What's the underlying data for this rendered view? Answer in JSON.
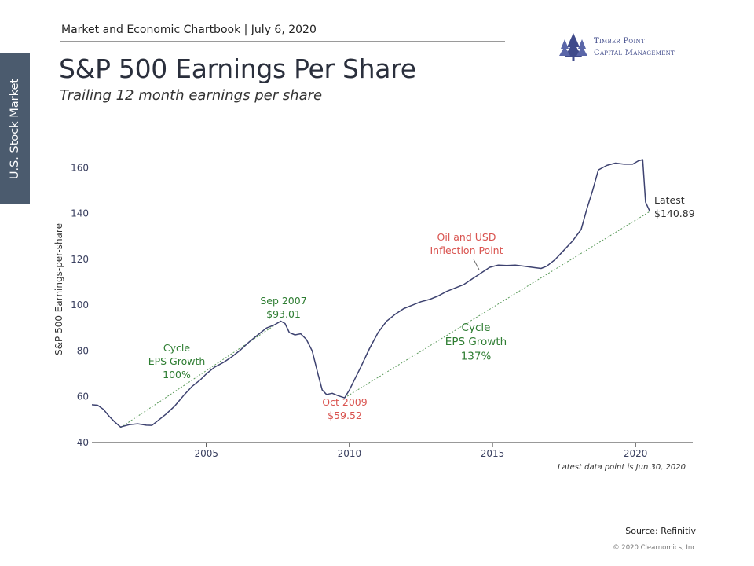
{
  "header": {
    "text": "Market and Economic Chartbook | July 6, 2020"
  },
  "title": "S&P 500 Earnings Per Share",
  "subtitle": "Trailing 12 month earnings per share",
  "side_tab": "U.S. Stock Market",
  "logo": {
    "line1": "Timber Point",
    "line2": "Capital Management",
    "icon": "pine-trees-icon"
  },
  "footer": {
    "source": "Source: Refinitiv",
    "copyright": "© 2020 Clearnomics, Inc"
  },
  "colors": {
    "line": "#3d4270",
    "green": "#2e7d32",
    "red": "#d9534f",
    "trend": "#5a9a5a"
  },
  "chart_data": {
    "type": "line",
    "xlabel": "",
    "ylabel": "S&P 500 Earnings-per-share",
    "ylim": [
      40,
      168
    ],
    "xlim": [
      2001.0,
      2022.0
    ],
    "yticks": [
      40,
      60,
      80,
      100,
      120,
      140,
      160
    ],
    "xticks": [
      2005,
      2010,
      2015,
      2020
    ],
    "grid": false,
    "note": "Latest data point is Jun 30, 2020",
    "series": [
      {
        "x": [
          2001.0,
          2001.2,
          2001.4,
          2001.6,
          2001.8,
          2002.0,
          2002.3,
          2002.6,
          2002.9,
          2003.1,
          2003.3,
          2003.6,
          2003.9,
          2004.2,
          2004.5,
          2004.8,
          2005.0,
          2005.3,
          2005.6,
          2005.9,
          2006.2,
          2006.5,
          2006.8,
          2007.1,
          2007.4,
          2007.6,
          2007.75,
          2007.9,
          2008.1,
          2008.3,
          2008.5,
          2008.7,
          2008.9,
          2009.05,
          2009.2,
          2009.4,
          2009.6,
          2009.83,
          2010.0,
          2010.2,
          2010.4,
          2010.7,
          2011.0,
          2011.3,
          2011.6,
          2011.9,
          2012.2,
          2012.5,
          2012.8,
          2013.1,
          2013.4,
          2013.7,
          2014.0,
          2014.3,
          2014.6,
          2014.9,
          2015.2,
          2015.5,
          2015.8,
          2016.1,
          2016.4,
          2016.7,
          2016.9,
          2017.2,
          2017.5,
          2017.8,
          2018.1,
          2018.3,
          2018.5,
          2018.7,
          2019.0,
          2019.3,
          2019.6,
          2019.9,
          2020.1,
          2020.25,
          2020.35,
          2020.5
        ],
        "values": [
          56.5,
          56.3,
          54.5,
          51.5,
          49.0,
          46.8,
          47.8,
          48.2,
          47.6,
          47.5,
          49.5,
          52.5,
          56.0,
          60.5,
          64.5,
          67.5,
          70.0,
          73.0,
          75.0,
          77.5,
          80.5,
          84.0,
          87.0,
          90.0,
          91.5,
          93.01,
          92.0,
          88.0,
          87.0,
          87.5,
          85.0,
          80.0,
          70.0,
          63.0,
          61.0,
          61.5,
          60.5,
          59.52,
          63.0,
          68.0,
          73.0,
          81.0,
          88.0,
          93.0,
          96.0,
          98.5,
          100.0,
          101.5,
          102.5,
          104.0,
          106.0,
          107.5,
          109.0,
          111.5,
          114.0,
          116.5,
          117.5,
          117.3,
          117.5,
          117.0,
          116.5,
          116.0,
          117.0,
          120.0,
          124.0,
          128.0,
          133.0,
          142.0,
          150.0,
          159.0,
          161.0,
          162.0,
          161.5,
          161.5,
          163.0,
          163.5,
          145.0,
          140.89
        ]
      }
    ],
    "trendlines": [
      {
        "label": "Cycle\nEPS Growth\n100%",
        "from": [
          2002.0,
          46.5
        ],
        "to": [
          2007.6,
          93.01
        ]
      },
      {
        "label": "Cycle\nEPS Growth\n137%",
        "from": [
          2009.83,
          59.52
        ],
        "to": [
          2020.5,
          140.89
        ]
      }
    ],
    "annotations": [
      {
        "text": "Sep 2007\n$93.01",
        "color": "green"
      },
      {
        "text": "Oct 2009\n$59.52",
        "color": "red"
      },
      {
        "text": "Oil and USD\nInflection Point",
        "color": "red"
      },
      {
        "text": "Latest\n$140.89",
        "color": "dark"
      }
    ]
  }
}
